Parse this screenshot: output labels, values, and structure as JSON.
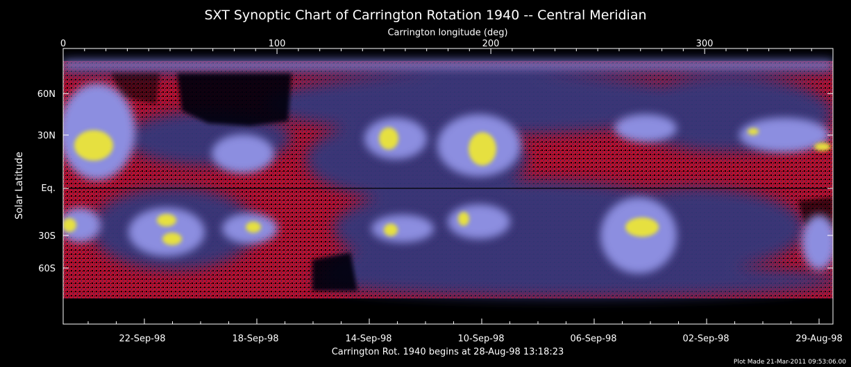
{
  "title": "SXT Synoptic Chart of Carrington Rotation 1940 -- Central Meridian",
  "top_axis": {
    "label": "Carrington longitude (deg)",
    "ticks": [
      "0",
      "100",
      "200",
      "300"
    ]
  },
  "left_axis": {
    "label": "Solar Latitude",
    "ticks": [
      "60N",
      "30N",
      "Eq.",
      "30S",
      "60S"
    ]
  },
  "bottom_axis": {
    "ticks": [
      "22-Sep-98",
      "18-Sep-98",
      "14-Sep-98",
      "10-Sep-98",
      "06-Sep-98",
      "02-Sep-98",
      "29-Aug-98"
    ],
    "caption": "Carrington Rot. 1940 begins at 28-Aug-98 13:18:23"
  },
  "footer": "Plot Made 21-Mar-2011 09:53:06.00",
  "colors": {
    "background": "#000000",
    "corona_red": "#d0153a",
    "corona_blue": "#3a3f7a",
    "corona_violet": "#8c8ee0",
    "active_yellow": "#e6e040"
  }
}
